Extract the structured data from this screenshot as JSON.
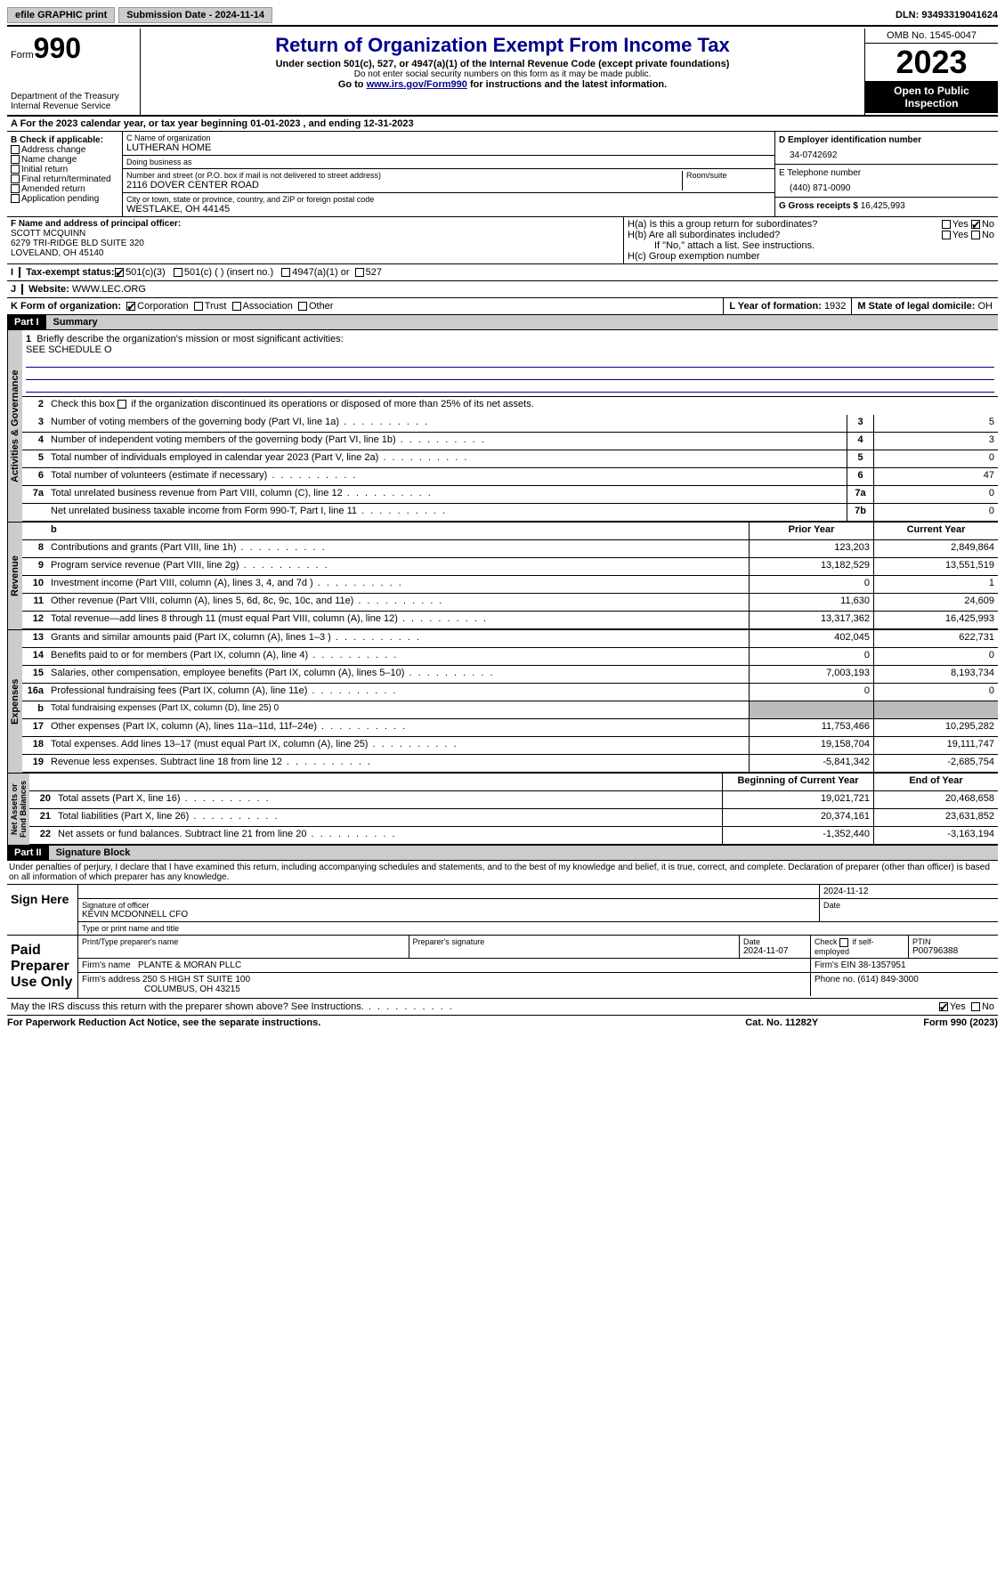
{
  "topbar": {
    "efile": "efile GRAPHIC print",
    "submission_label": "Submission Date - ",
    "submission_date": "2024-11-14",
    "dln_label": "DLN: ",
    "dln": "93493319041624"
  },
  "header": {
    "form_prefix": "Form",
    "form_num": "990",
    "dept": "Department of the Treasury\nInternal Revenue Service",
    "title": "Return of Organization Exempt From Income Tax",
    "sub1": "Under section 501(c), 527, or 4947(a)(1) of the Internal Revenue Code (except private foundations)",
    "sub2": "Do not enter social security numbers on this form as it may be made public.",
    "sub3_pre": "Go to ",
    "sub3_link": "www.irs.gov/Form990",
    "sub3_post": " for instructions and the latest information.",
    "omb": "OMB No. 1545-0047",
    "year": "2023",
    "open": "Open to Public Inspection"
  },
  "row_a": {
    "text_pre": "A For the 2023 calendar year, or tax year beginning ",
    "begin": "01-01-2023",
    "mid": "  , and ending ",
    "end": "12-31-2023"
  },
  "col_b": {
    "header": "B Check if applicable:",
    "items": [
      "Address change",
      "Name change",
      "Initial return",
      "Final return/terminated",
      "Amended return",
      "Application pending"
    ]
  },
  "col_c": {
    "name_label": "C Name of organization",
    "name": "LUTHERAN HOME",
    "dba_label": "Doing business as",
    "dba": "",
    "street_label": "Number and street (or P.O. box if mail is not delivered to street address)",
    "street": "2116 DOVER CENTER ROAD",
    "room_label": "Room/suite",
    "city_label": "City or town, state or province, country, and ZIP or foreign postal code",
    "city": "WESTLAKE, OH  44145"
  },
  "col_d": {
    "ein_label": "D Employer identification number",
    "ein": "34-0742692",
    "phone_label": "E Telephone number",
    "phone": "(440) 871-0090",
    "gross_label": "G Gross receipts $ ",
    "gross": "16,425,993"
  },
  "col_f": {
    "label": "F  Name and address of principal officer:",
    "name": "SCOTT MCQUINN",
    "addr1": "6279 TRI-RIDGE BLD SUITE 320",
    "addr2": "LOVELAND, OH  45140"
  },
  "col_h": {
    "ha": "H(a)  Is this a group return for subordinates?",
    "hb": "H(b)  Are all subordinates included?",
    "hb_note": "If \"No,\" attach a list. See instructions.",
    "hc": "H(c)  Group exemption number  "
  },
  "row_i": {
    "label": "Tax-exempt status:",
    "opts": [
      "501(c)(3)",
      "501(c) (  ) (insert no.)",
      "4947(a)(1) or",
      "527"
    ]
  },
  "row_j": {
    "label": "Website: ",
    "value": " WWW.LEC.ORG"
  },
  "row_k": {
    "label": "K Form of organization:",
    "opts": [
      "Corporation",
      "Trust",
      "Association",
      "Other"
    ],
    "l_label": "L Year of formation: ",
    "l_val": "1932",
    "m_label": "M State of legal domicile: ",
    "m_val": "OH"
  },
  "part1": {
    "hdr": "Part I",
    "title": "Summary",
    "mission_label": "Briefly describe the organization's mission or most significant activities:",
    "mission": "SEE SCHEDULE O",
    "line2": "Check this box      if the organization discontinued its operations or disposed of more than 25% of its net assets.",
    "governance": [
      {
        "n": "3",
        "d": "Number of voting members of the governing body (Part VI, line 1a)",
        "b": "3",
        "v": "5"
      },
      {
        "n": "4",
        "d": "Number of independent voting members of the governing body (Part VI, line 1b)",
        "b": "4",
        "v": "3"
      },
      {
        "n": "5",
        "d": "Total number of individuals employed in calendar year 2023 (Part V, line 2a)",
        "b": "5",
        "v": "0"
      },
      {
        "n": "6",
        "d": "Total number of volunteers (estimate if necessary)",
        "b": "6",
        "v": "47"
      },
      {
        "n": "7a",
        "d": "Total unrelated business revenue from Part VIII, column (C), line 12",
        "b": "7a",
        "v": "0"
      },
      {
        "n": "",
        "d": "Net unrelated business taxable income from Form 990-T, Part I, line 11",
        "b": "7b",
        "v": "0"
      }
    ],
    "rev_hdr": {
      "prior": "Prior Year",
      "current": "Current Year"
    },
    "revenue": [
      {
        "n": "8",
        "d": "Contributions and grants (Part VIII, line 1h)",
        "p": "123,203",
        "c": "2,849,864"
      },
      {
        "n": "9",
        "d": "Program service revenue (Part VIII, line 2g)",
        "p": "13,182,529",
        "c": "13,551,519"
      },
      {
        "n": "10",
        "d": "Investment income (Part VIII, column (A), lines 3, 4, and 7d )",
        "p": "0",
        "c": "1"
      },
      {
        "n": "11",
        "d": "Other revenue (Part VIII, column (A), lines 5, 6d, 8c, 9c, 10c, and 11e)",
        "p": "11,630",
        "c": "24,609"
      },
      {
        "n": "12",
        "d": "Total revenue—add lines 8 through 11 (must equal Part VIII, column (A), line 12)",
        "p": "13,317,362",
        "c": "16,425,993"
      }
    ],
    "expenses": [
      {
        "n": "13",
        "d": "Grants and similar amounts paid (Part IX, column (A), lines 1–3 )",
        "p": "402,045",
        "c": "622,731"
      },
      {
        "n": "14",
        "d": "Benefits paid to or for members (Part IX, column (A), line 4)",
        "p": "0",
        "c": "0"
      },
      {
        "n": "15",
        "d": "Salaries, other compensation, employee benefits (Part IX, column (A), lines 5–10)",
        "p": "7,003,193",
        "c": "8,193,734"
      },
      {
        "n": "16a",
        "d": "Professional fundraising fees (Part IX, column (A), line 11e)",
        "p": "0",
        "c": "0"
      },
      {
        "n": "b",
        "d": "Total fundraising expenses (Part IX, column (D), line 25) 0",
        "p": "",
        "c": "",
        "grey": true
      },
      {
        "n": "17",
        "d": "Other expenses (Part IX, column (A), lines 11a–11d, 11f–24e)",
        "p": "11,753,466",
        "c": "10,295,282"
      },
      {
        "n": "18",
        "d": "Total expenses. Add lines 13–17 (must equal Part IX, column (A), line 25)",
        "p": "19,158,704",
        "c": "19,111,747"
      },
      {
        "n": "19",
        "d": "Revenue less expenses. Subtract line 18 from line 12",
        "p": "-5,841,342",
        "c": "-2,685,754"
      }
    ],
    "na_hdr": {
      "prior": "Beginning of Current Year",
      "current": "End of Year"
    },
    "netassets": [
      {
        "n": "20",
        "d": "Total assets (Part X, line 16)",
        "p": "19,021,721",
        "c": "20,468,658"
      },
      {
        "n": "21",
        "d": "Total liabilities (Part X, line 26)",
        "p": "20,374,161",
        "c": "23,631,852"
      },
      {
        "n": "22",
        "d": "Net assets or fund balances. Subtract line 21 from line 20",
        "p": "-1,352,440",
        "c": "-3,163,194"
      }
    ]
  },
  "part2": {
    "hdr": "Part II",
    "title": "Signature Block",
    "text": "Under penalties of perjury, I declare that I have examined this return, including accompanying schedules and statements, and to the best of my knowledge and belief, it is true, correct, and complete. Declaration of preparer (other than officer) is based on all information of which preparer has any knowledge.",
    "sign_here": "Sign Here",
    "sig_date": "2024-11-12",
    "sig_label": "Signature of officer",
    "officer": "KEVIN MCDONNELL CFO",
    "officer_label": "Type or print name and title",
    "date_label": "Date",
    "paid": "Paid Preparer Use Only",
    "prep_name_label": "Print/Type preparer's name",
    "prep_sig_label": "Preparer's signature",
    "prep_date": "2024-11-07",
    "self_emp": "Check       if self-employed",
    "ptin_label": "PTIN",
    "ptin": "P00796388",
    "firm_name_label": "Firm's name   ",
    "firm_name": "PLANTE & MORAN PLLC",
    "firm_ein_label": "Firm's EIN  ",
    "firm_ein": "38-1357951",
    "firm_addr_label": "Firm's address ",
    "firm_addr1": "250 S HIGH ST SUITE 100",
    "firm_addr2": "COLUMBUS, OH  43215",
    "firm_phone_label": "Phone no. ",
    "firm_phone": "(614) 849-3000",
    "discuss": "May the IRS discuss this return with the preparer shown above? See Instructions."
  },
  "footer": {
    "left": "For Paperwork Reduction Act Notice, see the separate instructions.",
    "mid": "Cat. No. 11282Y",
    "right_pre": "Form ",
    "right_b": "990",
    "right_post": " (2023)"
  },
  "yn": {
    "yes": "Yes",
    "no": "No"
  }
}
